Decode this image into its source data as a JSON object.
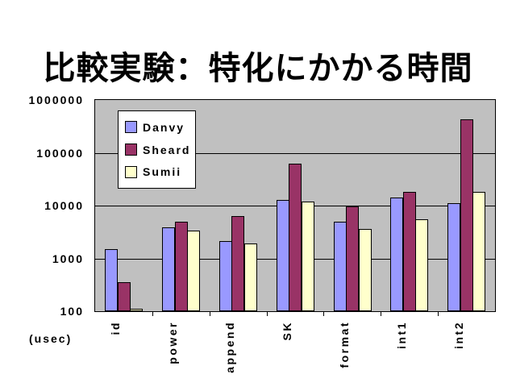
{
  "title": "比較実験：特化にかかる時間",
  "axis_unit_label": "(usec)",
  "colors": {
    "slide_background": "#FFFFFF",
    "plot_background": "#C0C0C0",
    "gridline": "#000000",
    "danvy": "#9999FF",
    "sheard": "#993366",
    "sumii": "#FFFFCC"
  },
  "chart_data": {
    "type": "bar",
    "title": "比較実験：特化にかかる時間",
    "ylabel": "(usec)",
    "y_scale": "log",
    "ylim": [
      100,
      1000000
    ],
    "yticks": [
      100,
      1000,
      10000,
      100000,
      1000000
    ],
    "grid": "horizontal-on",
    "legend_position": "inside-top-left",
    "plot_background": "#C0C0C0",
    "categories": [
      "id",
      "power",
      "append",
      "SK",
      "format",
      "int1",
      "int2"
    ],
    "series": [
      {
        "name": "Danvy",
        "color": "#9999FF",
        "values": [
          1500,
          3900,
          2100,
          13000,
          4900,
          14000,
          11000
        ]
      },
      {
        "name": "Sheard",
        "color": "#993366",
        "values": [
          360,
          5000,
          6300,
          63000,
          9800,
          18000,
          430000
        ]
      },
      {
        "name": "Sumii",
        "color": "#FFFFCC",
        "values": [
          110,
          3400,
          1900,
          12000,
          3600,
          5500,
          18000
        ]
      }
    ]
  }
}
